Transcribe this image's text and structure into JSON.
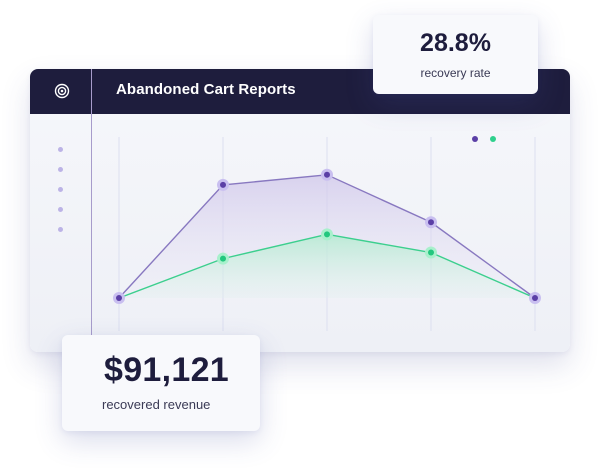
{
  "window": {
    "title": "Abandoned Cart Reports",
    "brand_icon": "target-icon",
    "sidebar_item_count": 5
  },
  "legend": {
    "colors": [
      "#5b3fa6",
      "#2fd08d"
    ]
  },
  "chart_data": {
    "type": "line",
    "x": [
      1,
      2,
      3,
      4,
      5
    ],
    "series": [
      {
        "color": "#8878c0",
        "values": [
          0,
          112,
          122,
          75,
          0
        ]
      },
      {
        "color": "#2fd08d",
        "values": [
          0,
          39,
          63,
          45,
          0
        ]
      }
    ],
    "ylim": [
      0,
      130
    ],
    "grid": "vertical"
  },
  "stats": {
    "recovery_rate_value": "28.8%",
    "recovery_rate_label": "recovery rate",
    "revenue_value": "$91,121",
    "revenue_label": "recovered revenue"
  },
  "colors": {
    "titlebar": "#1e1d3d",
    "accent_purple": "#5b3fa6",
    "accent_green": "#2fd08d"
  }
}
